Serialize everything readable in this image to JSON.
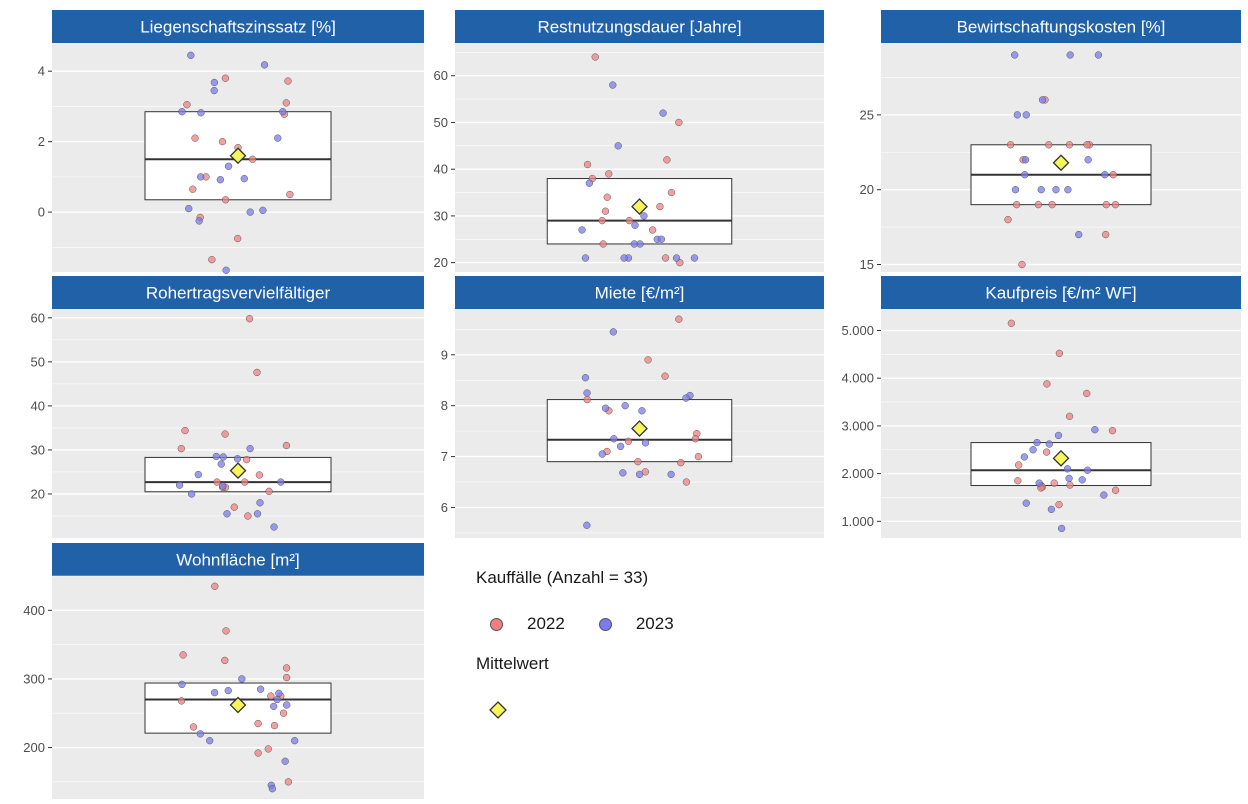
{
  "colors": {
    "strip": "#2061a8",
    "panel_bg": "#ebebeb",
    "grid": "#ffffff",
    "y2022": "#f08080",
    "y2023": "#7b7bef",
    "mean_fill": "#f6f65a"
  },
  "legend": {
    "title": "Kauffälle (Anzahl = 33)",
    "items": [
      {
        "label": "2022",
        "color": "#f08080"
      },
      {
        "label": "2023",
        "color": "#7b7bef"
      }
    ],
    "mean_title": "Mittelwert"
  },
  "chart_data": [
    {
      "type": "boxplot",
      "title": "Liegenschaftszinssatz [%]",
      "ylim": [
        -1.7,
        4.8
      ],
      "yticks": [
        0,
        2,
        4
      ],
      "ytick_labels": [
        "0",
        "2",
        "4"
      ],
      "box": {
        "q1": 0.35,
        "median": 1.5,
        "q3": 2.85
      },
      "mean": 1.6,
      "points": {
        "2022": [
          2.78,
          3.72,
          3.05,
          3.8,
          3.1,
          2.1,
          2.0,
          1.83,
          1.5,
          1.0,
          0.65,
          0.5,
          0.35,
          -0.15,
          -0.75,
          -1.35
        ],
        "2023": [
          4.45,
          4.18,
          3.68,
          3.45,
          2.85,
          2.85,
          2.82,
          2.1,
          1.3,
          1.0,
          0.95,
          0.92,
          0.05,
          0.0,
          0.1,
          -0.25,
          -1.65
        ]
      }
    },
    {
      "type": "boxplot",
      "title": "Restnutzungsdauer [Jahre]",
      "ylim": [
        18,
        67
      ],
      "yticks": [
        20,
        30,
        40,
        50,
        60
      ],
      "ytick_labels": [
        "20",
        "30",
        "40",
        "50",
        "60"
      ],
      "box": {
        "q1": 24,
        "median": 29,
        "q3": 38
      },
      "mean": 32,
      "points": {
        "2022": [
          64,
          50,
          42,
          41,
          39,
          38,
          35,
          34,
          32,
          32,
          31,
          29,
          29,
          27,
          24,
          21,
          20
        ],
        "2023": [
          58,
          52,
          45,
          37,
          30,
          28,
          27,
          25,
          25,
          24,
          24,
          21,
          21,
          21,
          21,
          21
        ]
      }
    },
    {
      "type": "boxplot",
      "title": "Bewirtschaftungskosten [%]",
      "ylim": [
        14.5,
        29.8
      ],
      "yticks": [
        15,
        20,
        25
      ],
      "ytick_labels": [
        "15",
        "20",
        "25"
      ],
      "box": {
        "q1": 19,
        "median": 21,
        "q3": 23
      },
      "mean": 21.8,
      "points": {
        "2022": [
          26,
          23,
          23,
          23,
          23,
          23,
          22,
          21,
          19,
          19,
          19,
          19,
          19,
          18,
          17,
          15
        ],
        "2023": [
          29,
          29,
          29,
          26,
          25,
          25,
          22,
          22,
          21,
          21,
          20,
          20,
          20,
          20,
          17
        ]
      }
    },
    {
      "type": "boxplot",
      "title": "Rohertragsvervielfältiger",
      "ylim": [
        10,
        62
      ],
      "yticks": [
        20,
        30,
        40,
        50,
        60
      ],
      "ytick_labels": [
        "20",
        "30",
        "40",
        "50",
        "60"
      ],
      "box": {
        "q1": 20.5,
        "median": 22.7,
        "q3": 28.3
      },
      "mean": 25.3,
      "points": {
        "2022": [
          59.8,
          47.6,
          34.4,
          33.6,
          31.0,
          30.3,
          27.8,
          24.3,
          22.7,
          22.7,
          21.5,
          21.5,
          20.6,
          17.0,
          15.0
        ],
        "2023": [
          30.3,
          28.5,
          28.4,
          28.0,
          26.8,
          24.4,
          22.7,
          22.0,
          21.8,
          20.0,
          18.0,
          15.5,
          15.5,
          12.5
        ]
      }
    },
    {
      "type": "boxplot",
      "title": "Miete [€/m²]",
      "ylim": [
        5.4,
        9.9
      ],
      "yticks": [
        6,
        7,
        8,
        9
      ],
      "ytick_labels": [
        "6",
        "7",
        "8",
        "9"
      ],
      "box": {
        "q1": 6.9,
        "median": 7.33,
        "q3": 8.12
      },
      "mean": 7.55,
      "points": {
        "2022": [
          9.7,
          8.9,
          8.58,
          8.12,
          7.9,
          7.45,
          7.35,
          7.3,
          7.1,
          7.0,
          6.9,
          6.88,
          6.7,
          6.5
        ],
        "2023": [
          9.45,
          8.55,
          8.25,
          8.2,
          8.15,
          8.0,
          7.95,
          7.9,
          7.35,
          7.27,
          7.2,
          7.05,
          6.68,
          6.65,
          6.65,
          5.65
        ]
      }
    },
    {
      "type": "boxplot",
      "title": "Kaufpreis [€/m² WF]",
      "ylim": [
        650,
        5450
      ],
      "yticks": [
        1000,
        2000,
        3000,
        4000,
        5000
      ],
      "ytick_labels": [
        "1.000",
        "2.000",
        "3.000",
        "4.000",
        "5.000"
      ],
      "box": {
        "q1": 1750,
        "median": 2070,
        "q3": 2650
      },
      "mean": 2320,
      "points": {
        "2022": [
          5150,
          4520,
          3880,
          3680,
          3200,
          2900,
          2450,
          2180,
          1850,
          1800,
          1760,
          1750,
          1720,
          1700,
          1650,
          1350
        ],
        "2023": [
          2920,
          2800,
          2650,
          2620,
          2500,
          2350,
          2100,
          2070,
          1900,
          1870,
          1800,
          1550,
          1380,
          1250,
          850
        ]
      }
    },
    {
      "type": "boxplot",
      "title": "Wohnfläche [m²]",
      "ylim": [
        125,
        450
      ],
      "yticks": [
        200,
        300,
        400
      ],
      "ytick_labels": [
        "200",
        "300",
        "400"
      ],
      "box": {
        "q1": 221,
        "median": 270,
        "q3": 294
      },
      "mean": 262,
      "points": {
        "2022": [
          435,
          370,
          335,
          327,
          316,
          302,
          275,
          275,
          268,
          250,
          235,
          232,
          230,
          198,
          192,
          150
        ],
        "2023": [
          300,
          292,
          285,
          283,
          280,
          279,
          270,
          262,
          260,
          220,
          210,
          210,
          180,
          145,
          140
        ]
      }
    }
  ]
}
